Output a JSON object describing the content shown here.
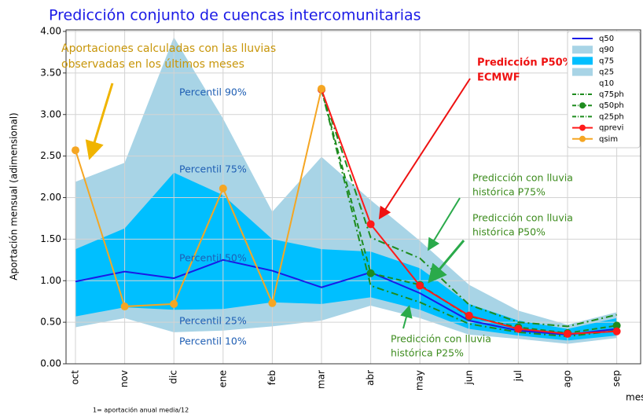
{
  "chart_data": {
    "type": "line",
    "title": "Predicción conjunto de cuencas intercomunitarias",
    "y_label": "Aportación mensual (adimensional)",
    "x_label": "mes",
    "footnote": "1= aportación anual media/12",
    "categories": [
      "oct",
      "nov",
      "dic",
      "ene",
      "feb",
      "mar",
      "abr",
      "may",
      "jun",
      "jul",
      "ago",
      "sep"
    ],
    "ylim": [
      0,
      4
    ],
    "yticks": [
      {
        "value": 0,
        "label": "0.00"
      },
      {
        "value": 0.5,
        "label": "0.50"
      },
      {
        "value": 1,
        "label": "1.00"
      },
      {
        "value": 1.5,
        "label": "1.50"
      },
      {
        "value": 2,
        "label": "2.00"
      },
      {
        "value": 2.5,
        "label": "2.50"
      },
      {
        "value": 3,
        "label": "3.00"
      },
      {
        "value": 3.5,
        "label": "3.50"
      },
      {
        "value": 4,
        "label": "4.00"
      }
    ],
    "grid": true,
    "legend": "upper right",
    "series": [
      {
        "name": "q50",
        "color": "#1a1ae6",
        "values": [
          0.99,
          1.11,
          1.03,
          1.25,
          1.12,
          0.92,
          1.1,
          0.85,
          0.52,
          0.4,
          0.35,
          0.42
        ]
      },
      {
        "name": "q90",
        "color": "#a8d4e6",
        "fill": true,
        "values": [
          2.19,
          2.42,
          3.93,
          2.95,
          1.83,
          2.49,
          1.97,
          1.48,
          0.95,
          0.64,
          0.47,
          0.62
        ]
      },
      {
        "name": "q75",
        "color": "#00bfff",
        "fill": true,
        "values": [
          1.38,
          1.63,
          2.3,
          2.03,
          1.5,
          1.38,
          1.35,
          1.15,
          0.72,
          0.52,
          0.42,
          0.55
        ]
      },
      {
        "name": "q25",
        "color": "#a8d4e6",
        "fill": true,
        "values": [
          0.57,
          0.68,
          0.65,
          0.66,
          0.74,
          0.72,
          0.8,
          0.65,
          0.42,
          0.34,
          0.28,
          0.34
        ]
      },
      {
        "name": "q10",
        "fill": true,
        "values": [
          0.44,
          0.55,
          0.38,
          0.4,
          0.45,
          0.52,
          0.7,
          0.55,
          0.35,
          0.3,
          0.24,
          0.31
        ]
      },
      {
        "name": "q75ph",
        "color": "#1e8c1e",
        "dash": "dashdot",
        "values": [
          null,
          null,
          null,
          null,
          null,
          3.3,
          1.52,
          1.27,
          0.71,
          0.5,
          0.45,
          0.59
        ]
      },
      {
        "name": "q50ph",
        "color": "#1e8c1e",
        "dash": "dashed",
        "marker": true,
        "values": [
          null,
          null,
          null,
          null,
          null,
          3.3,
          1.09,
          0.95,
          0.57,
          0.44,
          0.37,
          0.46
        ]
      },
      {
        "name": "q25ph",
        "color": "#1e8c1e",
        "dash": "dashdot",
        "values": [
          null,
          null,
          null,
          null,
          null,
          3.3,
          0.94,
          0.74,
          0.48,
          0.38,
          0.33,
          0.4
        ]
      },
      {
        "name": "qprevi",
        "color": "#ff1a1a",
        "marker": true,
        "values": [
          null,
          null,
          null,
          null,
          null,
          3.3,
          1.68,
          0.94,
          0.58,
          0.42,
          0.36,
          0.39
        ]
      },
      {
        "name": "qsim",
        "color": "#f5a623",
        "marker": true,
        "values": [
          2.57,
          0.69,
          0.72,
          2.11,
          0.73,
          3.31,
          null,
          null,
          null,
          null,
          null,
          null
        ]
      }
    ],
    "annotations": [
      {
        "lines": [
          "Aportaciones calculadas con las lluvias",
          "observadas en los últimos meses"
        ],
        "color": "#c8960a"
      },
      {
        "lines": [
          "Predicción P50%",
          "ECMWF"
        ],
        "color": "#ee1111"
      },
      {
        "lines": [
          "Predicción con lluvia",
          "histórica P75%"
        ],
        "color": "#3d8c1e"
      },
      {
        "lines": [
          "Predicción con lluvia",
          "histórica P50%"
        ],
        "color": "#3d8c1e"
      },
      {
        "lines": [
          "Predicción con lluvia",
          "histórica P25%"
        ],
        "color": "#3d8c1e"
      },
      {
        "lines": [
          "Percentil 90%"
        ],
        "color": "#1f5fb4"
      },
      {
        "lines": [
          "Percentil 75%"
        ],
        "color": "#1f5fb4"
      },
      {
        "lines": [
          "Percentil 50%"
        ],
        "color": "#1f5fb4"
      },
      {
        "lines": [
          "Percentil 25%"
        ],
        "color": "#1f5fb4"
      },
      {
        "lines": [
          "Percentil 10%"
        ],
        "color": "#1f5fb4"
      }
    ]
  }
}
